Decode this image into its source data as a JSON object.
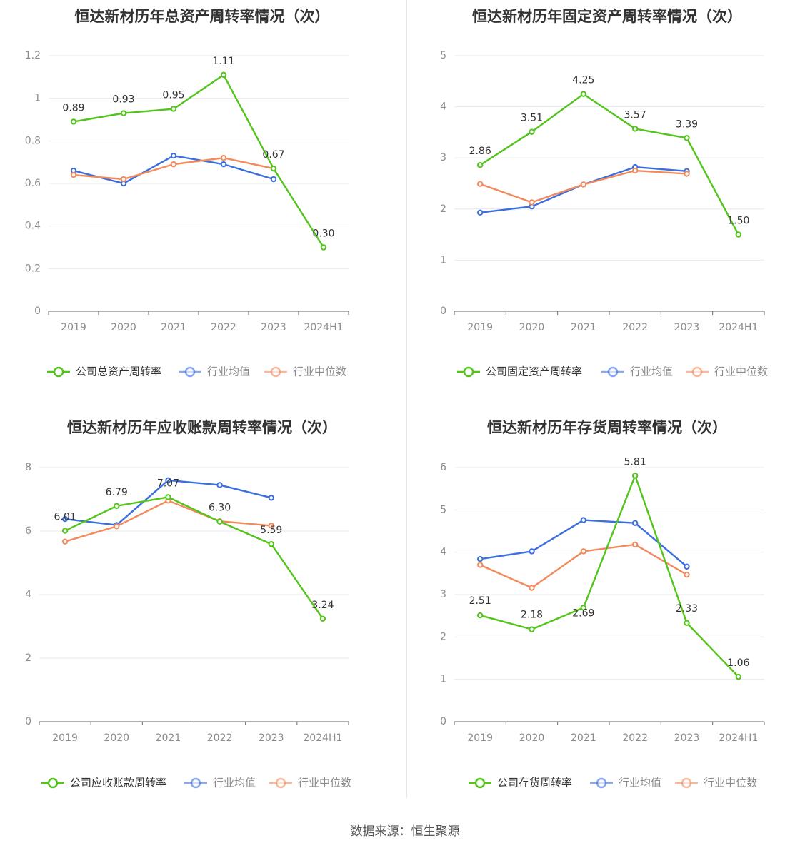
{
  "colors": {
    "company": "#52c41a",
    "industry_mean": "#3b6fe0",
    "industry_median": "#f28a5c",
    "grid": "#e8e8ee",
    "axis": "#666666"
  },
  "source_text": "数据来源：恒生聚源",
  "chart_data": [
    {
      "type": "line",
      "title": "恒达新材历年总资产周转率情况（次）",
      "categories": [
        "2019",
        "2020",
        "2021",
        "2022",
        "2023",
        "2024H1"
      ],
      "ylim": [
        0,
        1.2
      ],
      "yticks": [
        "0",
        "0.2",
        "0.4",
        "0.6",
        "0.8",
        "1",
        "1.2"
      ],
      "legend_position": "bottom",
      "series": [
        {
          "name": "公司总资产周转率",
          "key": "company",
          "values": [
            0.89,
            0.93,
            0.95,
            1.11,
            0.67,
            0.3
          ],
          "labels": [
            "0.89",
            "0.93",
            "0.95",
            "1.11",
            "0.67",
            "0.30"
          ]
        },
        {
          "name": "行业均值",
          "key": "industry_mean",
          "values": [
            0.66,
            0.6,
            0.73,
            0.69,
            0.62,
            null
          ]
        },
        {
          "name": "行业中位数",
          "key": "industry_median",
          "values": [
            0.64,
            0.62,
            0.69,
            0.72,
            0.67,
            null
          ]
        }
      ]
    },
    {
      "type": "line",
      "title": "恒达新材历年固定资产周转率情况（次）",
      "categories": [
        "2019",
        "2020",
        "2021",
        "2022",
        "2023",
        "2024H1"
      ],
      "ylim": [
        0,
        5
      ],
      "yticks": [
        "0",
        "1",
        "2",
        "3",
        "4",
        "5"
      ],
      "legend_position": "bottom",
      "series": [
        {
          "name": "公司固定资产周转率",
          "key": "company",
          "values": [
            2.86,
            3.51,
            4.25,
            3.57,
            3.39,
            1.5
          ],
          "labels": [
            "2.86",
            "3.51",
            "4.25",
            "3.57",
            "3.39",
            "1.50"
          ]
        },
        {
          "name": "行业均值",
          "key": "industry_mean",
          "values": [
            1.93,
            2.05,
            2.48,
            2.82,
            2.74,
            null
          ]
        },
        {
          "name": "行业中位数",
          "key": "industry_median",
          "values": [
            2.49,
            2.13,
            2.48,
            2.75,
            2.69,
            null
          ]
        }
      ]
    },
    {
      "type": "line",
      "title": "恒达新材历年应收账款周转率情况（次）",
      "categories": [
        "2019",
        "2020",
        "2021",
        "2022",
        "2023",
        "2024H1"
      ],
      "ylim": [
        0,
        8
      ],
      "yticks": [
        "0",
        "2",
        "4",
        "6",
        "8"
      ],
      "legend_position": "bottom",
      "series": [
        {
          "name": "公司应收账款周转率",
          "key": "company",
          "values": [
            6.01,
            6.79,
            7.07,
            6.3,
            5.59,
            3.24
          ],
          "labels": [
            "6.01",
            "6.79",
            "7.07",
            "6.30",
            "5.59",
            "3.24"
          ]
        },
        {
          "name": "行业均值",
          "key": "industry_mean",
          "values": [
            6.38,
            6.19,
            7.6,
            7.45,
            7.05,
            null
          ]
        },
        {
          "name": "行业中位数",
          "key": "industry_median",
          "values": [
            5.67,
            6.15,
            6.96,
            6.31,
            6.17,
            null
          ]
        }
      ]
    },
    {
      "type": "line",
      "title": "恒达新材历年存货周转率情况（次）",
      "categories": [
        "2019",
        "2020",
        "2021",
        "2022",
        "2023",
        "2024H1"
      ],
      "ylim": [
        0,
        6
      ],
      "yticks": [
        "0",
        "1",
        "2",
        "3",
        "4",
        "5",
        "6"
      ],
      "legend_position": "bottom",
      "series": [
        {
          "name": "公司存货周转率",
          "key": "company",
          "values": [
            2.51,
            2.18,
            2.69,
            5.81,
            2.33,
            1.06
          ],
          "labels": [
            "2.51",
            "2.18",
            "2.69",
            "5.81",
            "2.33",
            "1.06"
          ]
        },
        {
          "name": "行业均值",
          "key": "industry_mean",
          "values": [
            3.84,
            4.02,
            4.76,
            4.69,
            3.66,
            null
          ]
        },
        {
          "name": "行业中位数",
          "key": "industry_median",
          "values": [
            3.7,
            3.16,
            4.02,
            4.18,
            3.47,
            null
          ]
        }
      ]
    }
  ]
}
